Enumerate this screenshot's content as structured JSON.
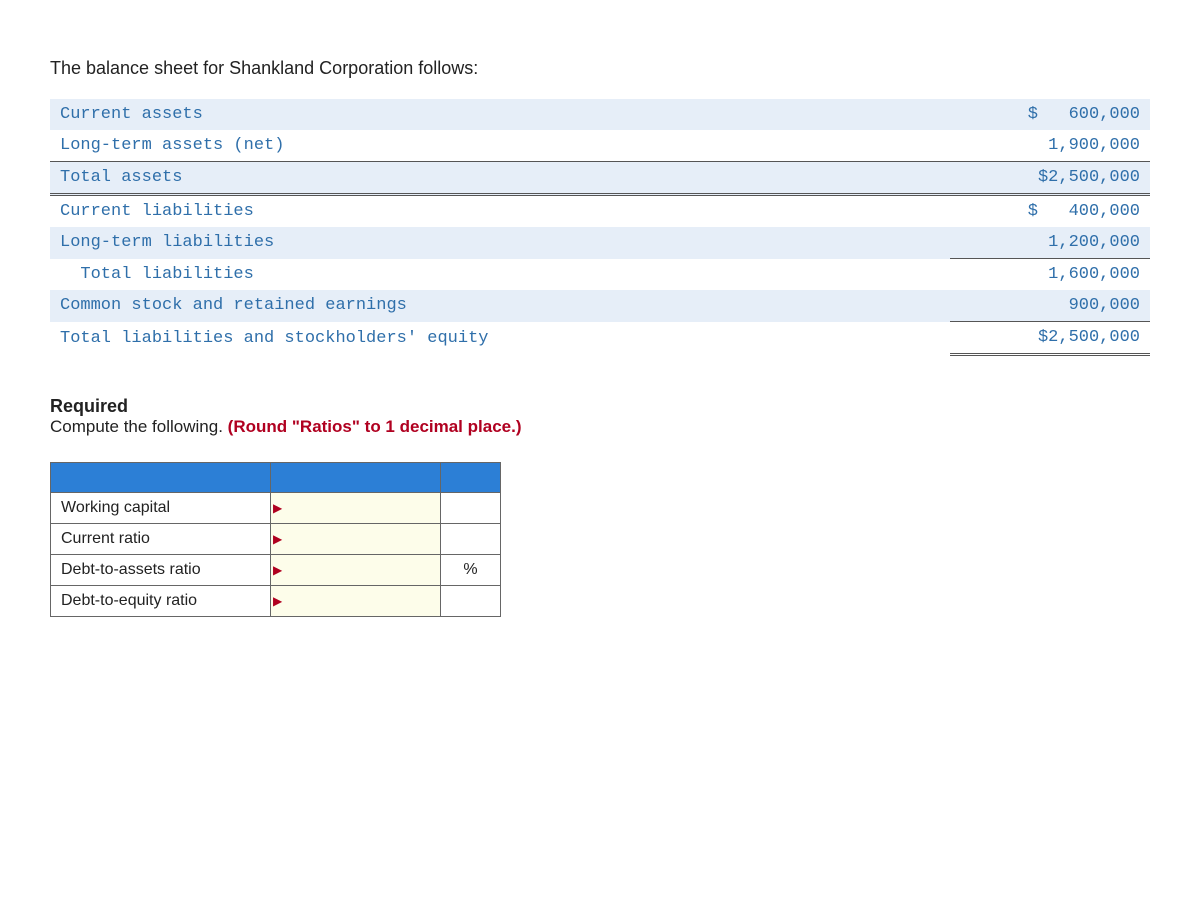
{
  "intro": "The balance sheet for Shankland Corporation follows:",
  "balance_sheet": {
    "currency": "$",
    "rows": [
      {
        "label": "Current assets",
        "amount": "$   600,000",
        "band": true,
        "section": "assets"
      },
      {
        "label": "Long-term assets (net)",
        "amount": "1,900,000",
        "band": false,
        "section": "assets"
      },
      {
        "label": "Total assets",
        "amount": "$2,500,000",
        "band": true,
        "section": "total-assets"
      },
      {
        "label": "Current liabilities",
        "amount": "$   400,000",
        "band": false,
        "section": "liab"
      },
      {
        "label": "Long-term liabilities",
        "amount": "1,200,000",
        "band": true,
        "section": "liab"
      },
      {
        "label": "  Total liabilities",
        "amount": "1,600,000",
        "band": false,
        "section": "total-liab"
      },
      {
        "label": "Common stock and retained earnings",
        "amount": "900,000",
        "band": true,
        "section": "equity"
      },
      {
        "label": "Total liabilities and stockholders' equity",
        "amount": "$2,500,000",
        "band": false,
        "section": "grand-total"
      }
    ]
  },
  "required": {
    "title": "Required",
    "text_prefix": "Compute the following. ",
    "round_note": "(Round \"Ratios\" to 1 decimal place.)"
  },
  "answer_table": {
    "rows": [
      {
        "label": "Working capital",
        "suffix": ""
      },
      {
        "label": "Current ratio",
        "suffix": ""
      },
      {
        "label": "Debt-to-assets ratio",
        "suffix": "%"
      },
      {
        "label": "Debt-to-equity ratio",
        "suffix": ""
      }
    ]
  },
  "colors": {
    "band_bg": "#e6eef8",
    "header_bg": "#2c7fd6",
    "input_bg": "#fdfdea",
    "note_color": "#b00020",
    "mono_text": "#2f6faa"
  }
}
